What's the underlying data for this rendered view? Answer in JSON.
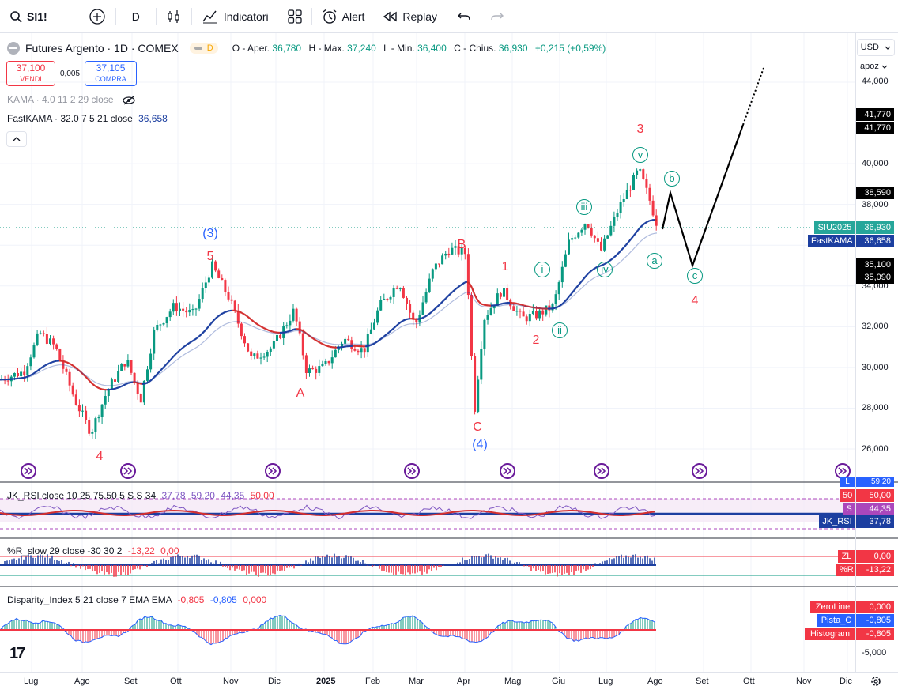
{
  "toolbar": {
    "symbol": "SI1!",
    "interval": "D",
    "indicators_label": "Indicatori",
    "alert_label": "Alert",
    "replay_label": "Replay"
  },
  "legend": {
    "title": "Futures Argento · 1D · COMEX",
    "badge": "D",
    "open_k": "O - Aper.",
    "open_v": "36,780",
    "high_k": "H - Max.",
    "high_v": "37,240",
    "low_k": "L - Min.",
    "low_v": "36,400",
    "close_k": "C - Chius.",
    "close_v": "36,930",
    "change": "+0,215 (+0,59%)"
  },
  "trade": {
    "sell_price": "37,100",
    "sell_label": "VENDI",
    "spread": "0,005",
    "buy_price": "37,105",
    "buy_label": "COMPRA"
  },
  "indicators": {
    "kama": "KAMA · 4.0 11 2 29 close",
    "fastkama": "FastKAMA · 32.0 7 5 21 close",
    "fastkama_value": "36,658"
  },
  "price_axis": {
    "currency": "USD",
    "scale_mode": "apoz",
    "ticks": [
      "44,000",
      "40,000",
      "38,000",
      "34,000",
      "32,000",
      "30,000",
      "28,000",
      "26,000"
    ],
    "labels": {
      "hi1": "41,770",
      "hi2": "41,770",
      "target_b": "38,590",
      "sym_name": "SIU2025",
      "sym_price": "36,930",
      "fast_name": "FastKAMA",
      "fast_price": "36,658",
      "lo1": "35,100",
      "lo2": "35,090"
    }
  },
  "chart_data": {
    "type": "candlestick",
    "symbol": "Futures Argento",
    "x_months": [
      "Lug",
      "Ago",
      "Set",
      "Ott",
      "Nov",
      "Dic",
      "2025",
      "Feb",
      "Mar",
      "Apr",
      "Mag",
      "Giu",
      "Lug",
      "Ago",
      "Set",
      "Ott",
      "Nov",
      "Dic"
    ],
    "ylim": [
      25000,
      45000
    ],
    "wave_labels": {
      "w4_low": "4",
      "w3_blue": "(3)",
      "w5": "5",
      "wA": "A",
      "wB": "B",
      "wC": "C",
      "w4_blue": "(4)",
      "w1": "1",
      "w2": "2",
      "w3": "3",
      "w4_target": "4",
      "ci": "i",
      "cii": "ii",
      "ciii": "iii",
      "civ": "iv",
      "cv": "v",
      "ca": "a",
      "cb": "b",
      "cc": "c"
    }
  },
  "panes": {
    "rsi": {
      "legend": "JK_RSI close 10 25 75.50 5 S S 34",
      "v1": "37,78",
      "v2": "59,20",
      "v3": "44,35",
      "v4": "50,00",
      "lab_l": "L",
      "lab_l_val": "59,20",
      "lab_50": "50",
      "lab_50_val": "50,00",
      "lab_s": "S",
      "lab_s_val": "44,35",
      "lab_jk": "JK_RSI",
      "lab_jk_val": "37,78"
    },
    "wr": {
      "legend": "%R_slow 29 close -30 30 2",
      "v1": "-13,22",
      "v2": "0,00",
      "lab_zl": "ZL",
      "lab_zl_val": "0,00",
      "lab_r": "%R",
      "lab_r_val": "-13,22"
    },
    "disparity": {
      "legend": "Disparity_Index 5 21 close 7 EMA EMA",
      "v1": "-0,805",
      "v2": "-0,805",
      "v3": "0,000",
      "lab_zero": "ZeroLine",
      "lab_zero_val": "0,000",
      "lab_pista": "Pista_C",
      "lab_pista_val": "-0,805",
      "lab_hist": "Histogram",
      "lab_hist_val": "-0,805",
      "tick": "-5,000"
    }
  },
  "logo": "17"
}
